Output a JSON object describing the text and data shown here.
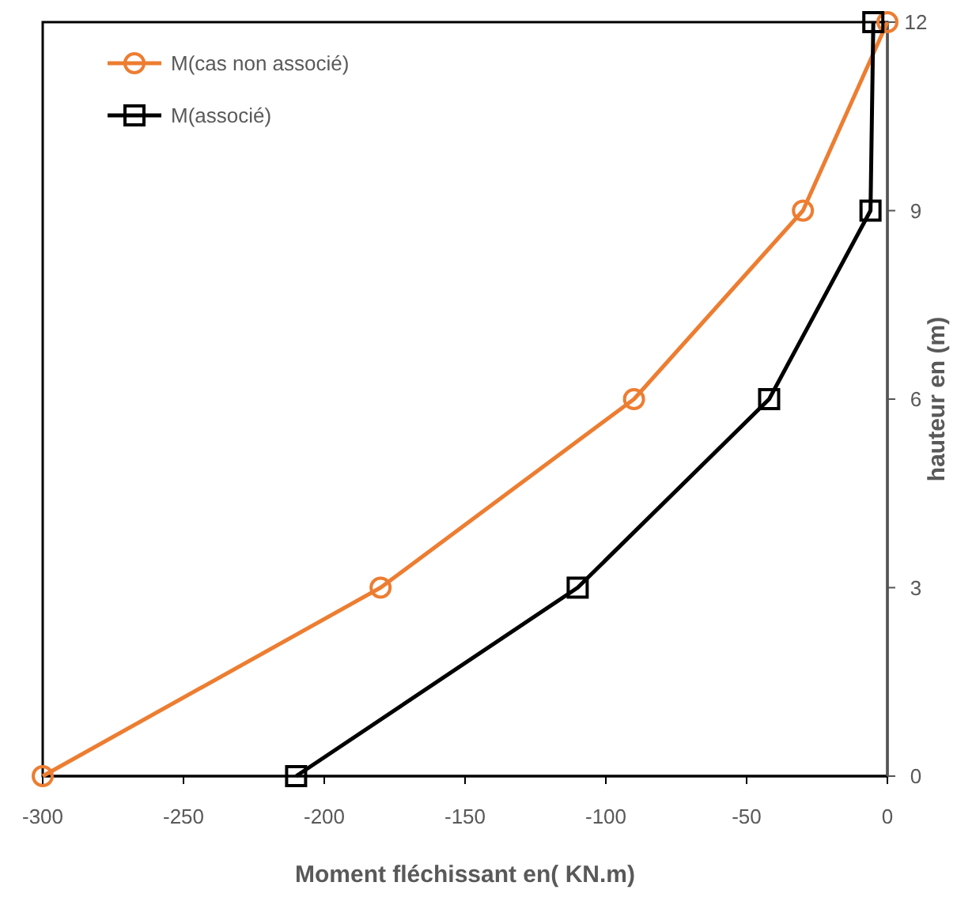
{
  "chart_data": {
    "type": "line",
    "xlabel": "Moment fléchissant   en( KN.m)",
    "ylabel": "hauteur  en  (m)",
    "xlim": [
      -300,
      0
    ],
    "xticks": [
      -300,
      -250,
      -200,
      -150,
      -100,
      -50,
      0
    ],
    "ylim": [
      0,
      12
    ],
    "yticks": [
      0,
      3,
      6,
      9,
      12
    ],
    "grid": false,
    "legend": "top left",
    "series": [
      {
        "name": "M(cas non associé)",
        "color": "#ed7d31",
        "marker": "circle",
        "x": [
          -300,
          -180,
          -90,
          -30,
          0
        ],
        "values": [
          0,
          3,
          6,
          9,
          12
        ]
      },
      {
        "name": "M(associé)",
        "color": "#000000",
        "marker": "square",
        "x": [
          -210,
          -110,
          -42,
          -6,
          -5
        ],
        "values": [
          0,
          3,
          6,
          9,
          12
        ]
      }
    ]
  }
}
